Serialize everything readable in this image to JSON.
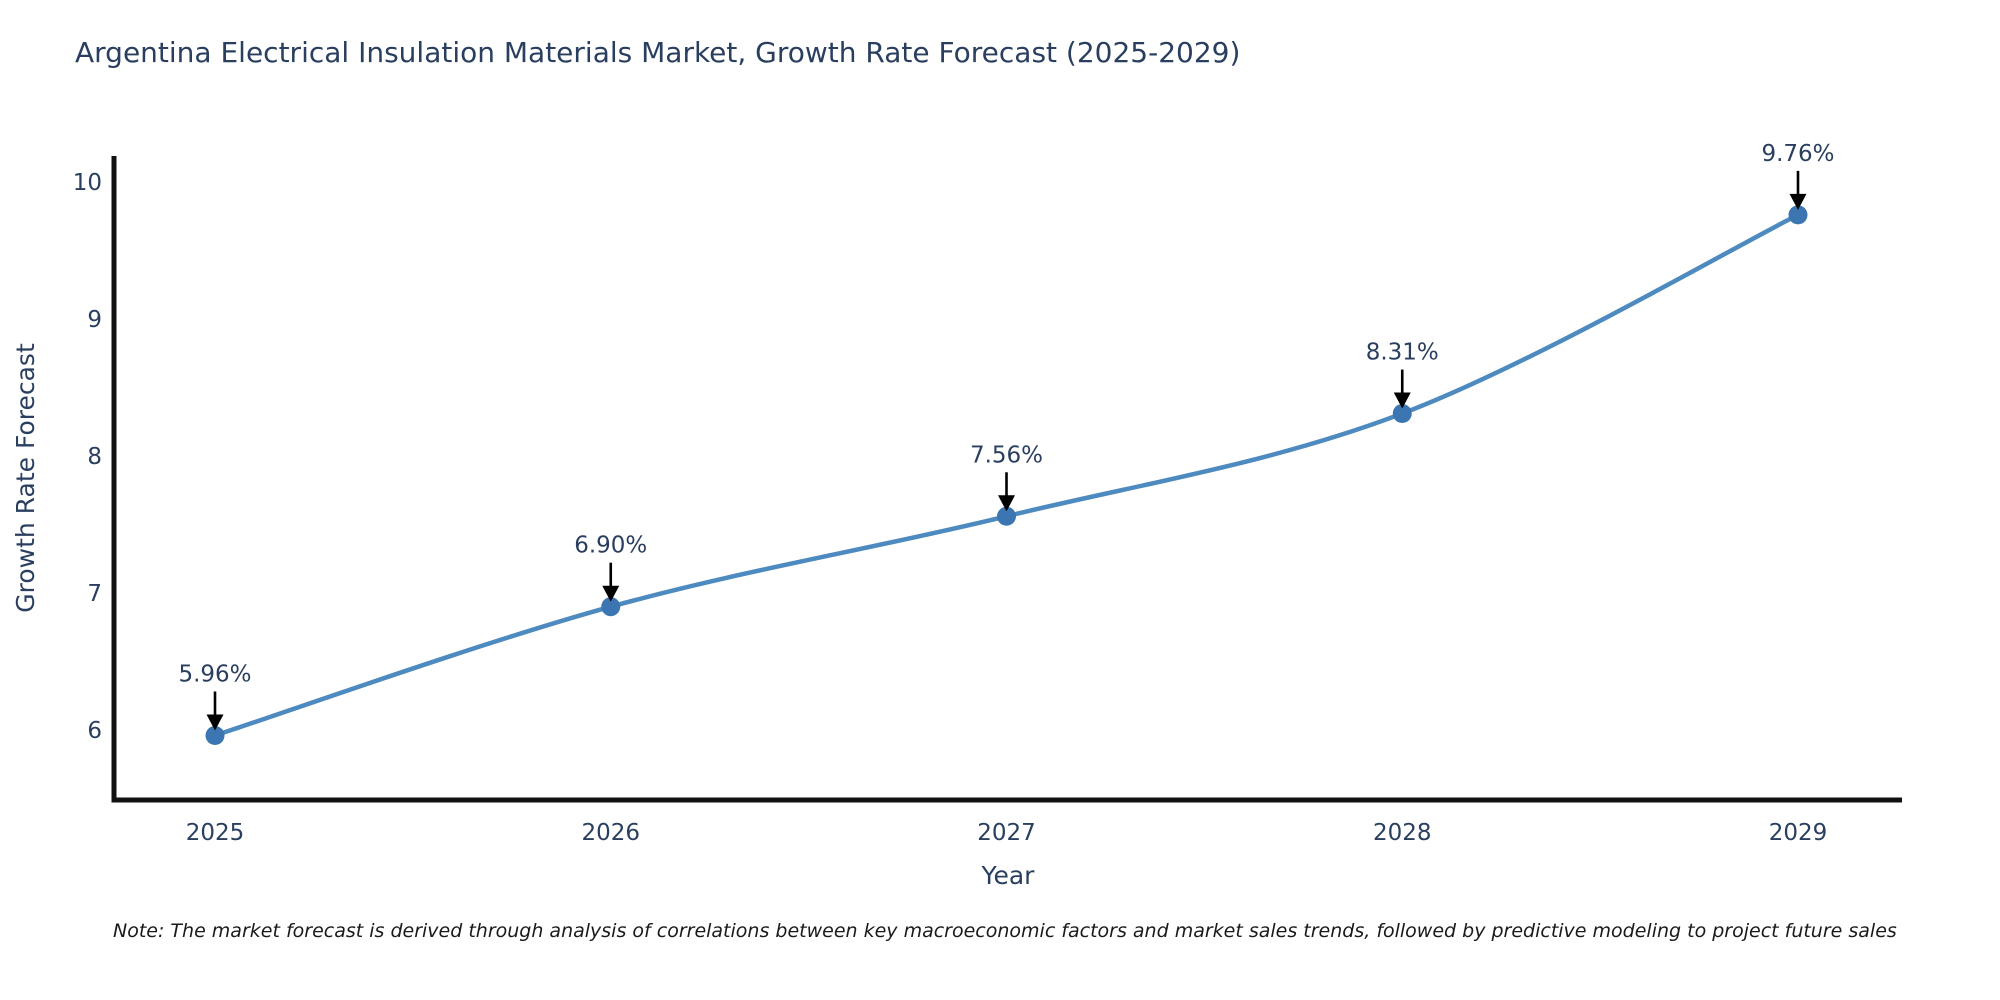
{
  "title": "Argentina Electrical Insulation Materials Market, Growth Rate Forecast (2025-2029)",
  "note": "Note: The market forecast is derived through analysis of correlations between key macroeconomic factors and market sales trends, followed by predictive modeling to project future sales",
  "chart_data": {
    "type": "line",
    "x": [
      2025,
      2026,
      2027,
      2028,
      2029
    ],
    "x_tick_labels": [
      "2025",
      "2026",
      "2027",
      "2028",
      "2029"
    ],
    "values": [
      5.96,
      6.9,
      7.56,
      8.31,
      9.76
    ],
    "point_labels": [
      "5.96%",
      "6.90%",
      "7.56%",
      "8.31%",
      "9.76%"
    ],
    "xlabel": "Year",
    "ylabel": "Growth Rate Forecast",
    "y_ticks": [
      6,
      7,
      8,
      9,
      10
    ],
    "y_tick_labels": [
      "6",
      "7",
      "8",
      "9",
      "10"
    ],
    "ylim": [
      5.49,
      10.2
    ],
    "xlim": [
      2024.74,
      2029.26
    ],
    "grid": false,
    "legend": false,
    "line_style": "smooth-spline",
    "marker": "circle",
    "annotations": "value labels with downward black arrows above each point"
  },
  "colors": {
    "background": "#ffffff",
    "line": "#4d8ac0",
    "marker": "#3b76b3",
    "axis": "#111111",
    "text": "#2a3f5f",
    "annotation_text": "#2a3f5f",
    "annotation_arrow": "#000000",
    "note_text": "#1a1a1a"
  }
}
